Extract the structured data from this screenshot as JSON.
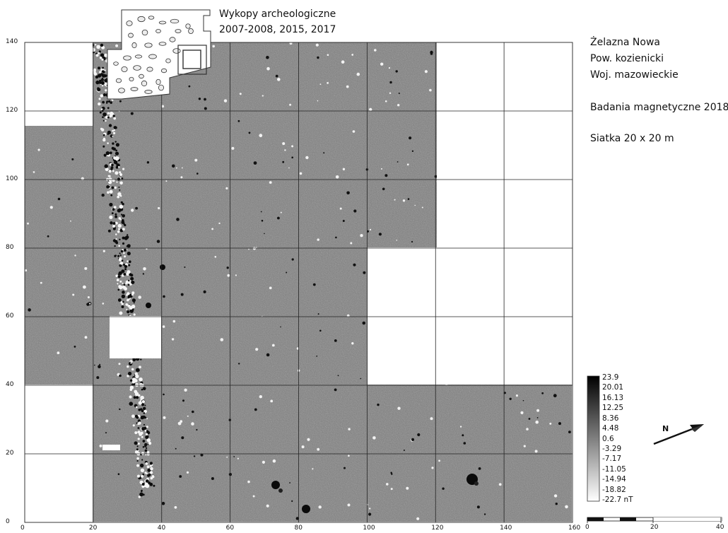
{
  "site": {
    "location": "Żelazna Nowa",
    "county": "Pow. kozienicki",
    "voivodeship": "Woj. mazowieckie",
    "survey": "Badania magnetyczne 2018",
    "grid": "Siatka 20 x 20 m"
  },
  "excavations": {
    "title": "Wykopy archeologiczne",
    "years": "2007-2008, 2015, 2017"
  },
  "map": {
    "x_ticks": [
      "0",
      "20",
      "40",
      "60",
      "80",
      "100",
      "120",
      "140",
      "160"
    ],
    "y_ticks": [
      "140",
      "120",
      "100",
      "80",
      "60",
      "40",
      "20",
      "0"
    ],
    "x_range": [
      0,
      160
    ],
    "y_range": [
      0,
      140
    ],
    "grid_step_m": 20,
    "background_color": "#7c7c7c",
    "grid_color": "#222222"
  },
  "legend": {
    "values": [
      "23.9",
      "20.01",
      "16.13",
      "12.25",
      "8.36",
      "4.48",
      "0.6",
      "-3.29",
      "-7.17",
      "-11.05",
      "-14.94",
      "-18.82",
      "-22.7 nT"
    ],
    "unit": "nT",
    "gradient": [
      "#000000",
      "#ffffff"
    ]
  },
  "north_arrow": {
    "label": "N"
  },
  "scale_bar": {
    "labels": [
      "0",
      "20",
      "40"
    ]
  }
}
